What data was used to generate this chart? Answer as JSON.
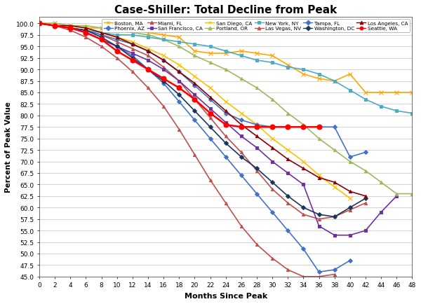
{
  "title": "Case-Shiller: Total Decline from Peak",
  "xlabel": "Months Since Peak",
  "ylabel": "Percent of Peak Value",
  "xlim": [
    0,
    48
  ],
  "ylim": [
    45.0,
    101.5
  ],
  "yticks": [
    45.0,
    47.5,
    50.0,
    52.5,
    55.0,
    57.5,
    60.0,
    62.5,
    65.0,
    67.5,
    70.0,
    72.5,
    75.0,
    77.5,
    80.0,
    82.5,
    85.0,
    87.5,
    90.0,
    92.5,
    95.0,
    97.5,
    100.0
  ],
  "xticks": [
    0,
    2,
    4,
    6,
    8,
    10,
    12,
    14,
    16,
    18,
    20,
    22,
    24,
    26,
    28,
    30,
    32,
    34,
    36,
    38,
    40,
    42,
    44,
    46,
    48
  ],
  "series": {
    "Boston, MA": {
      "color": "#FFA500",
      "marker": "x",
      "linestyle": "-",
      "linewidth": 1.2,
      "markersize": 4,
      "data_x": [
        0,
        2,
        4,
        6,
        8,
        10,
        12,
        14,
        16,
        18,
        20,
        22,
        24,
        26,
        28,
        30,
        32,
        34,
        36,
        38,
        40,
        42,
        44,
        46,
        48
      ],
      "data_y": [
        100,
        100,
        99.5,
        99,
        99,
        99,
        98.5,
        98,
        97.5,
        97,
        94,
        93.5,
        93.5,
        94,
        93.5,
        93,
        91,
        89,
        88,
        87.5,
        89,
        85,
        85,
        85,
        85
      ]
    },
    "Phoenix, AZ": {
      "color": "#4472C4",
      "marker": "D",
      "linestyle": "-",
      "linewidth": 1.2,
      "markersize": 3,
      "data_x": [
        0,
        2,
        4,
        6,
        8,
        10,
        12,
        14,
        16,
        18,
        20,
        22,
        24,
        26,
        28,
        30,
        32,
        34,
        36,
        38,
        40
      ],
      "data_y": [
        100,
        99.5,
        99,
        98,
        96.5,
        95,
        93,
        90,
        87,
        83,
        79,
        75,
        71,
        67,
        63,
        59,
        55,
        51,
        46,
        46.5,
        48.5
      ]
    },
    "Miami, FL": {
      "color": "#C0504D",
      "marker": "^",
      "linestyle": "-",
      "linewidth": 1.2,
      "markersize": 3,
      "data_x": [
        0,
        2,
        4,
        6,
        8,
        10,
        12,
        14,
        16,
        18,
        20,
        22,
        24,
        26,
        28,
        30,
        32,
        34,
        36,
        38,
        40,
        42
      ],
      "data_y": [
        100,
        99.5,
        99,
        98.5,
        97.5,
        96,
        94.5,
        93,
        90.5,
        87.5,
        83.5,
        79.5,
        75.5,
        72,
        68,
        64,
        61,
        58.5,
        57.5,
        58,
        59.5,
        61
      ]
    },
    "San Francisco, CA": {
      "color": "#7030A0",
      "marker": "s",
      "linestyle": "-",
      "linewidth": 1.2,
      "markersize": 3,
      "data_x": [
        0,
        2,
        4,
        6,
        8,
        10,
        12,
        14,
        16,
        18,
        20,
        22,
        24,
        26,
        28,
        30,
        32,
        34,
        36,
        38,
        40,
        42,
        44,
        46
      ],
      "data_y": [
        100,
        99.5,
        99,
        98,
        96.5,
        95,
        93.5,
        92,
        90,
        87.5,
        84.5,
        81.5,
        78.5,
        75.5,
        73,
        70,
        67.5,
        65,
        56,
        54,
        54,
        55,
        59,
        62.5
      ]
    },
    "San Diego, CA": {
      "color": "#FFC000",
      "marker": "x",
      "linestyle": "-",
      "linewidth": 1.2,
      "markersize": 4,
      "data_x": [
        0,
        2,
        4,
        6,
        8,
        10,
        12,
        14,
        16,
        18,
        20,
        22,
        24,
        26,
        28,
        30,
        32,
        34,
        36,
        38,
        40
      ],
      "data_y": [
        100,
        99.5,
        99.5,
        99,
        98,
        97,
        96,
        94.5,
        93,
        91,
        88.5,
        86,
        83,
        80.5,
        78,
        75,
        72.5,
        70,
        67,
        64.5,
        62
      ]
    },
    "Portland, OR": {
      "color": "#9BBB59",
      "marker": "^",
      "linestyle": "-",
      "linewidth": 1.2,
      "markersize": 3,
      "data_x": [
        0,
        2,
        4,
        6,
        8,
        10,
        12,
        14,
        16,
        18,
        20,
        22,
        24,
        26,
        28,
        30,
        32,
        34,
        36,
        38,
        40,
        42,
        44,
        46,
        48
      ],
      "data_y": [
        100,
        100,
        99.5,
        99.5,
        99,
        98.5,
        98,
        97.5,
        96.5,
        95,
        93,
        91.5,
        90,
        88,
        86,
        83.5,
        80.5,
        78,
        75,
        72.5,
        70,
        68,
        65.5,
        63,
        63
      ]
    },
    "New York, NY": {
      "color": "#4BACC6",
      "marker": "s",
      "linestyle": "-",
      "linewidth": 1.2,
      "markersize": 3,
      "data_x": [
        0,
        2,
        4,
        6,
        8,
        10,
        12,
        14,
        16,
        18,
        20,
        22,
        24,
        26,
        28,
        30,
        32,
        34,
        36,
        38,
        40,
        42,
        44,
        46,
        48
      ],
      "data_y": [
        100,
        99.5,
        99,
        98.5,
        98,
        97.5,
        97.5,
        97,
        96.5,
        96,
        95.5,
        95,
        94,
        93,
        92,
        91.5,
        90.5,
        90,
        89,
        87.5,
        85.5,
        83.5,
        82,
        81,
        80.5
      ]
    },
    "Las Vegas, NV": {
      "color": "#C0504D",
      "marker": "^",
      "linestyle": "-",
      "linewidth": 1.2,
      "markersize": 3,
      "data_x": [
        0,
        2,
        4,
        6,
        8,
        10,
        12,
        14,
        16,
        18,
        20,
        22,
        24,
        26,
        28,
        30,
        32,
        34,
        36,
        38
      ],
      "data_y": [
        100,
        99.5,
        98.5,
        97,
        95,
        92.5,
        89.5,
        86,
        82,
        77,
        71.5,
        66,
        61,
        56,
        52,
        49,
        46.5,
        45,
        45,
        45.5
      ]
    },
    "Tampa, FL": {
      "color": "#4472C4",
      "marker": "D",
      "linestyle": "-",
      "linewidth": 1.2,
      "markersize": 3,
      "data_x": [
        0,
        2,
        4,
        6,
        8,
        10,
        12,
        14,
        16,
        18,
        20,
        22,
        24,
        26,
        28,
        30,
        32,
        34,
        36,
        38,
        40,
        42
      ],
      "data_y": [
        100,
        99.5,
        99,
        98.5,
        97.5,
        96.5,
        95.5,
        94,
        92,
        89.5,
        86.5,
        83.5,
        80.5,
        79,
        78,
        77.5,
        77.5,
        77.5,
        77.5,
        77.5,
        71,
        72
      ]
    },
    "Washington, DC": {
      "color": "#17375E",
      "marker": "D",
      "linestyle": "-",
      "linewidth": 1.2,
      "markersize": 3,
      "data_x": [
        0,
        2,
        4,
        6,
        8,
        10,
        12,
        14,
        16,
        18,
        20,
        22,
        24,
        26,
        28,
        30,
        32,
        34,
        36,
        38,
        40,
        42
      ],
      "data_y": [
        100,
        99.5,
        99,
        98.5,
        97,
        95,
        92.5,
        90,
        87.5,
        84.5,
        81,
        77.5,
        74,
        71,
        68.5,
        65.5,
        62.5,
        60,
        58.5,
        58,
        60,
        62
      ]
    },
    "Los Angeles, CA": {
      "color": "#8B0000",
      "marker": "^",
      "linestyle": "-",
      "linewidth": 1.2,
      "markersize": 3,
      "data_x": [
        0,
        2,
        4,
        6,
        8,
        10,
        12,
        14,
        16,
        18,
        20,
        22,
        24,
        26,
        28,
        30,
        32,
        34,
        36,
        38,
        40,
        42
      ],
      "data_y": [
        100,
        99.5,
        99.5,
        99,
        98,
        97,
        95.5,
        94,
        92,
        89.5,
        87,
        84,
        81,
        78,
        75.5,
        73,
        70.5,
        68.5,
        66.5,
        65.5,
        63.5,
        62.5
      ]
    },
    "Seattle, WA": {
      "color": "#FF0000",
      "marker": "o",
      "linestyle": "-",
      "linewidth": 1.8,
      "markersize": 5,
      "data_x": [
        0,
        2,
        4,
        6,
        8,
        10,
        12,
        14,
        16,
        18,
        20,
        22,
        24,
        26,
        28,
        30,
        32,
        34,
        36
      ],
      "data_y": [
        100,
        99.5,
        99,
        98,
        96.5,
        94,
        92,
        90,
        88,
        86,
        83.5,
        80.5,
        78,
        77.5,
        77.5,
        77.5,
        77.5,
        77.5,
        77.5
      ]
    }
  },
  "legend_row1": [
    "Boston, MA",
    "Phoenix, AZ",
    "Miami, FL",
    "San Francisco, CA",
    "San Diego, CA",
    "Portland, OR"
  ],
  "legend_row2": [
    "New York, NY",
    "Las Vegas, NV",
    "Tampa, FL",
    "Washington, DC",
    "Los Angeles, CA",
    "Seattle, WA"
  ]
}
